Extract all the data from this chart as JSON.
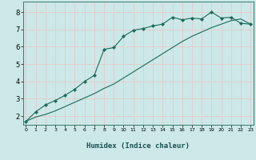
{
  "xlabel": "Humidex (Indice chaleur)",
  "bg_color": "#cce8e8",
  "grid_color": "#e8c8c8",
  "line_color": "#1a6b5a",
  "x_values": [
    0,
    1,
    2,
    3,
    4,
    5,
    6,
    7,
    8,
    9,
    10,
    11,
    12,
    13,
    14,
    15,
    16,
    17,
    18,
    19,
    20,
    21,
    22,
    23
  ],
  "line1_y": [
    1.7,
    2.25,
    2.65,
    2.9,
    3.2,
    3.55,
    4.0,
    4.35,
    5.85,
    5.95,
    6.6,
    6.95,
    7.05,
    7.2,
    7.3,
    7.7,
    7.55,
    7.65,
    7.6,
    8.0,
    7.65,
    7.7,
    7.35,
    7.3
  ],
  "line2_y": [
    1.7,
    1.95,
    2.1,
    2.3,
    2.55,
    2.8,
    3.05,
    3.3,
    3.6,
    3.85,
    4.2,
    4.55,
    4.9,
    5.25,
    5.6,
    5.95,
    6.3,
    6.6,
    6.85,
    7.1,
    7.3,
    7.5,
    7.6,
    7.3
  ],
  "ylim": [
    1.5,
    8.6
  ],
  "xlim": [
    -0.3,
    23.3
  ],
  "yticks": [
    2,
    3,
    4,
    5,
    6,
    7,
    8
  ],
  "xticks": [
    0,
    1,
    2,
    3,
    4,
    5,
    6,
    7,
    8,
    9,
    10,
    11,
    12,
    13,
    14,
    15,
    16,
    17,
    18,
    19,
    20,
    21,
    22,
    23
  ]
}
